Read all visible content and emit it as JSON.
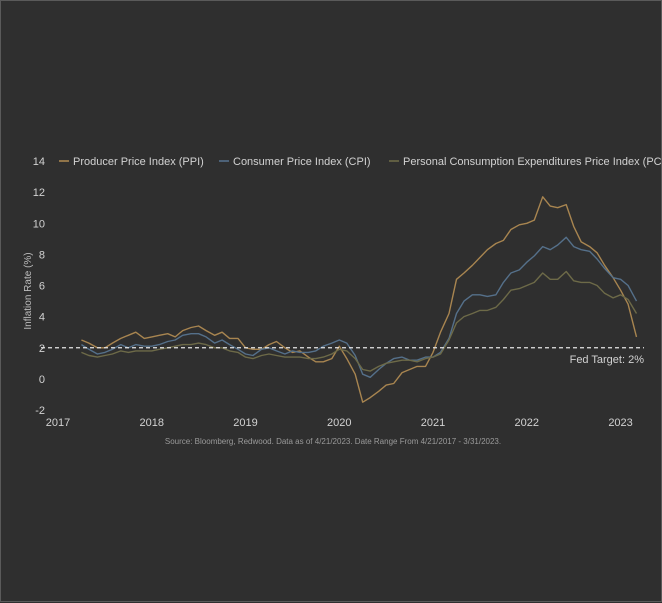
{
  "chart_data": {
    "type": "line",
    "ylabel": "Inflation Rate (%)",
    "source": "Source: Bloomberg, Redwood. Data as of 4/21/2023. Date Range From 4/21/2017 - 3/31/2023.",
    "ylim": [
      -2,
      14
    ],
    "yticks": [
      "-2",
      "0",
      "2",
      "4",
      "6",
      "8",
      "10",
      "12",
      "14"
    ],
    "xlim": [
      2017,
      2023.25
    ],
    "xticks": [
      "2017",
      "2018",
      "2019",
      "2020",
      "2021",
      "2022",
      "2023"
    ],
    "grid": false,
    "legend_position": "top",
    "reference_line": {
      "value": 2,
      "label": "Fed Target: 2%",
      "color": "#e6e6e6"
    },
    "series": [
      {
        "name": "Producer Price Index (PPI)",
        "color": "#a88550",
        "points": [
          [
            2017.25,
            2.5
          ],
          [
            2017.33,
            2.3
          ],
          [
            2017.42,
            2.0
          ],
          [
            2017.5,
            2.0
          ],
          [
            2017.58,
            2.3
          ],
          [
            2017.67,
            2.6
          ],
          [
            2017.75,
            2.8
          ],
          [
            2017.83,
            3.0
          ],
          [
            2017.92,
            2.6
          ],
          [
            2018.0,
            2.7
          ],
          [
            2018.08,
            2.8
          ],
          [
            2018.17,
            2.9
          ],
          [
            2018.25,
            2.7
          ],
          [
            2018.33,
            3.1
          ],
          [
            2018.42,
            3.3
          ],
          [
            2018.5,
            3.4
          ],
          [
            2018.58,
            3.1
          ],
          [
            2018.67,
            2.8
          ],
          [
            2018.75,
            3.0
          ],
          [
            2018.83,
            2.6
          ],
          [
            2018.92,
            2.6
          ],
          [
            2019.0,
            2.0
          ],
          [
            2019.08,
            1.9
          ],
          [
            2019.17,
            1.9
          ],
          [
            2019.25,
            2.2
          ],
          [
            2019.33,
            2.4
          ],
          [
            2019.42,
            2.0
          ],
          [
            2019.5,
            1.7
          ],
          [
            2019.58,
            1.8
          ],
          [
            2019.67,
            1.4
          ],
          [
            2019.75,
            1.1
          ],
          [
            2019.83,
            1.1
          ],
          [
            2019.92,
            1.3
          ],
          [
            2020.0,
            2.1
          ],
          [
            2020.08,
            1.3
          ],
          [
            2020.17,
            0.3
          ],
          [
            2020.25,
            -1.5
          ],
          [
            2020.33,
            -1.2
          ],
          [
            2020.42,
            -0.8
          ],
          [
            2020.5,
            -0.4
          ],
          [
            2020.58,
            -0.3
          ],
          [
            2020.67,
            0.4
          ],
          [
            2020.75,
            0.6
          ],
          [
            2020.83,
            0.8
          ],
          [
            2020.92,
            0.8
          ],
          [
            2021.0,
            1.7
          ],
          [
            2021.08,
            3.0
          ],
          [
            2021.17,
            4.2
          ],
          [
            2021.25,
            6.4
          ],
          [
            2021.33,
            6.8
          ],
          [
            2021.42,
            7.3
          ],
          [
            2021.5,
            7.8
          ],
          [
            2021.58,
            8.3
          ],
          [
            2021.67,
            8.7
          ],
          [
            2021.75,
            8.9
          ],
          [
            2021.83,
            9.6
          ],
          [
            2021.92,
            9.9
          ],
          [
            2022.0,
            10.0
          ],
          [
            2022.08,
            10.2
          ],
          [
            2022.17,
            11.7
          ],
          [
            2022.25,
            11.1
          ],
          [
            2022.33,
            11.0
          ],
          [
            2022.42,
            11.2
          ],
          [
            2022.5,
            9.8
          ],
          [
            2022.58,
            8.8
          ],
          [
            2022.67,
            8.5
          ],
          [
            2022.75,
            8.1
          ],
          [
            2022.83,
            7.3
          ],
          [
            2022.92,
            6.5
          ],
          [
            2023.0,
            5.7
          ],
          [
            2023.08,
            4.8
          ],
          [
            2023.17,
            2.7
          ]
        ]
      },
      {
        "name": "Consumer Price Index (CPI)",
        "color": "#55708a",
        "points": [
          [
            2017.25,
            2.2
          ],
          [
            2017.33,
            1.9
          ],
          [
            2017.42,
            1.6
          ],
          [
            2017.5,
            1.7
          ],
          [
            2017.58,
            1.9
          ],
          [
            2017.67,
            2.2
          ],
          [
            2017.75,
            2.0
          ],
          [
            2017.83,
            2.2
          ],
          [
            2017.92,
            2.1
          ],
          [
            2018.0,
            2.1
          ],
          [
            2018.08,
            2.2
          ],
          [
            2018.17,
            2.4
          ],
          [
            2018.25,
            2.5
          ],
          [
            2018.33,
            2.8
          ],
          [
            2018.42,
            2.9
          ],
          [
            2018.5,
            2.9
          ],
          [
            2018.58,
            2.7
          ],
          [
            2018.67,
            2.3
          ],
          [
            2018.75,
            2.5
          ],
          [
            2018.83,
            2.2
          ],
          [
            2018.92,
            1.9
          ],
          [
            2019.0,
            1.6
          ],
          [
            2019.08,
            1.5
          ],
          [
            2019.17,
            1.9
          ],
          [
            2019.25,
            2.0
          ],
          [
            2019.33,
            1.8
          ],
          [
            2019.42,
            1.6
          ],
          [
            2019.5,
            1.8
          ],
          [
            2019.58,
            1.7
          ],
          [
            2019.67,
            1.7
          ],
          [
            2019.75,
            1.8
          ],
          [
            2019.83,
            2.1
          ],
          [
            2019.92,
            2.3
          ],
          [
            2020.0,
            2.5
          ],
          [
            2020.08,
            2.3
          ],
          [
            2020.17,
            1.5
          ],
          [
            2020.25,
            0.3
          ],
          [
            2020.33,
            0.1
          ],
          [
            2020.42,
            0.6
          ],
          [
            2020.5,
            1.0
          ],
          [
            2020.58,
            1.3
          ],
          [
            2020.67,
            1.4
          ],
          [
            2020.75,
            1.2
          ],
          [
            2020.83,
            1.2
          ],
          [
            2020.92,
            1.4
          ],
          [
            2021.0,
            1.4
          ],
          [
            2021.08,
            1.7
          ],
          [
            2021.17,
            2.6
          ],
          [
            2021.25,
            4.2
          ],
          [
            2021.33,
            5.0
          ],
          [
            2021.42,
            5.4
          ],
          [
            2021.5,
            5.4
          ],
          [
            2021.58,
            5.3
          ],
          [
            2021.67,
            5.4
          ],
          [
            2021.75,
            6.2
          ],
          [
            2021.83,
            6.8
          ],
          [
            2021.92,
            7.0
          ],
          [
            2022.0,
            7.5
          ],
          [
            2022.08,
            7.9
          ],
          [
            2022.17,
            8.5
          ],
          [
            2022.25,
            8.3
          ],
          [
            2022.33,
            8.6
          ],
          [
            2022.42,
            9.1
          ],
          [
            2022.5,
            8.5
          ],
          [
            2022.58,
            8.3
          ],
          [
            2022.67,
            8.2
          ],
          [
            2022.75,
            7.7
          ],
          [
            2022.83,
            7.1
          ],
          [
            2022.92,
            6.5
          ],
          [
            2023.0,
            6.4
          ],
          [
            2023.08,
            6.0
          ],
          [
            2023.17,
            5.0
          ]
        ]
      },
      {
        "name": "Personal Consumption Expenditures Price Index (PCE)",
        "color": "#6d6a48",
        "points": [
          [
            2017.25,
            1.7
          ],
          [
            2017.33,
            1.5
          ],
          [
            2017.42,
            1.4
          ],
          [
            2017.5,
            1.5
          ],
          [
            2017.58,
            1.6
          ],
          [
            2017.67,
            1.8
          ],
          [
            2017.75,
            1.7
          ],
          [
            2017.83,
            1.8
          ],
          [
            2017.92,
            1.8
          ],
          [
            2018.0,
            1.8
          ],
          [
            2018.08,
            1.9
          ],
          [
            2018.17,
            2.0
          ],
          [
            2018.25,
            2.1
          ],
          [
            2018.33,
            2.2
          ],
          [
            2018.42,
            2.2
          ],
          [
            2018.5,
            2.3
          ],
          [
            2018.58,
            2.2
          ],
          [
            2018.67,
            2.0
          ],
          [
            2018.75,
            2.0
          ],
          [
            2018.83,
            1.8
          ],
          [
            2018.92,
            1.7
          ],
          [
            2019.0,
            1.4
          ],
          [
            2019.08,
            1.3
          ],
          [
            2019.17,
            1.5
          ],
          [
            2019.25,
            1.6
          ],
          [
            2019.33,
            1.5
          ],
          [
            2019.42,
            1.4
          ],
          [
            2019.5,
            1.4
          ],
          [
            2019.58,
            1.4
          ],
          [
            2019.67,
            1.3
          ],
          [
            2019.75,
            1.3
          ],
          [
            2019.83,
            1.4
          ],
          [
            2019.92,
            1.6
          ],
          [
            2020.0,
            1.9
          ],
          [
            2020.08,
            1.8
          ],
          [
            2020.17,
            1.3
          ],
          [
            2020.25,
            0.6
          ],
          [
            2020.33,
            0.5
          ],
          [
            2020.42,
            0.8
          ],
          [
            2020.5,
            1.0
          ],
          [
            2020.58,
            1.1
          ],
          [
            2020.67,
            1.2
          ],
          [
            2020.75,
            1.2
          ],
          [
            2020.83,
            1.1
          ],
          [
            2020.92,
            1.3
          ],
          [
            2021.0,
            1.4
          ],
          [
            2021.08,
            1.6
          ],
          [
            2021.17,
            2.5
          ],
          [
            2021.25,
            3.6
          ],
          [
            2021.33,
            4.0
          ],
          [
            2021.42,
            4.2
          ],
          [
            2021.5,
            4.4
          ],
          [
            2021.58,
            4.4
          ],
          [
            2021.67,
            4.6
          ],
          [
            2021.75,
            5.1
          ],
          [
            2021.83,
            5.7
          ],
          [
            2021.92,
            5.8
          ],
          [
            2022.0,
            6.0
          ],
          [
            2022.08,
            6.2
          ],
          [
            2022.17,
            6.8
          ],
          [
            2022.25,
            6.4
          ],
          [
            2022.33,
            6.4
          ],
          [
            2022.42,
            6.9
          ],
          [
            2022.5,
            6.3
          ],
          [
            2022.58,
            6.2
          ],
          [
            2022.67,
            6.2
          ],
          [
            2022.75,
            6.0
          ],
          [
            2022.83,
            5.5
          ],
          [
            2022.92,
            5.2
          ],
          [
            2023.0,
            5.4
          ],
          [
            2023.08,
            5.1
          ],
          [
            2023.17,
            4.2
          ]
        ]
      }
    ]
  }
}
